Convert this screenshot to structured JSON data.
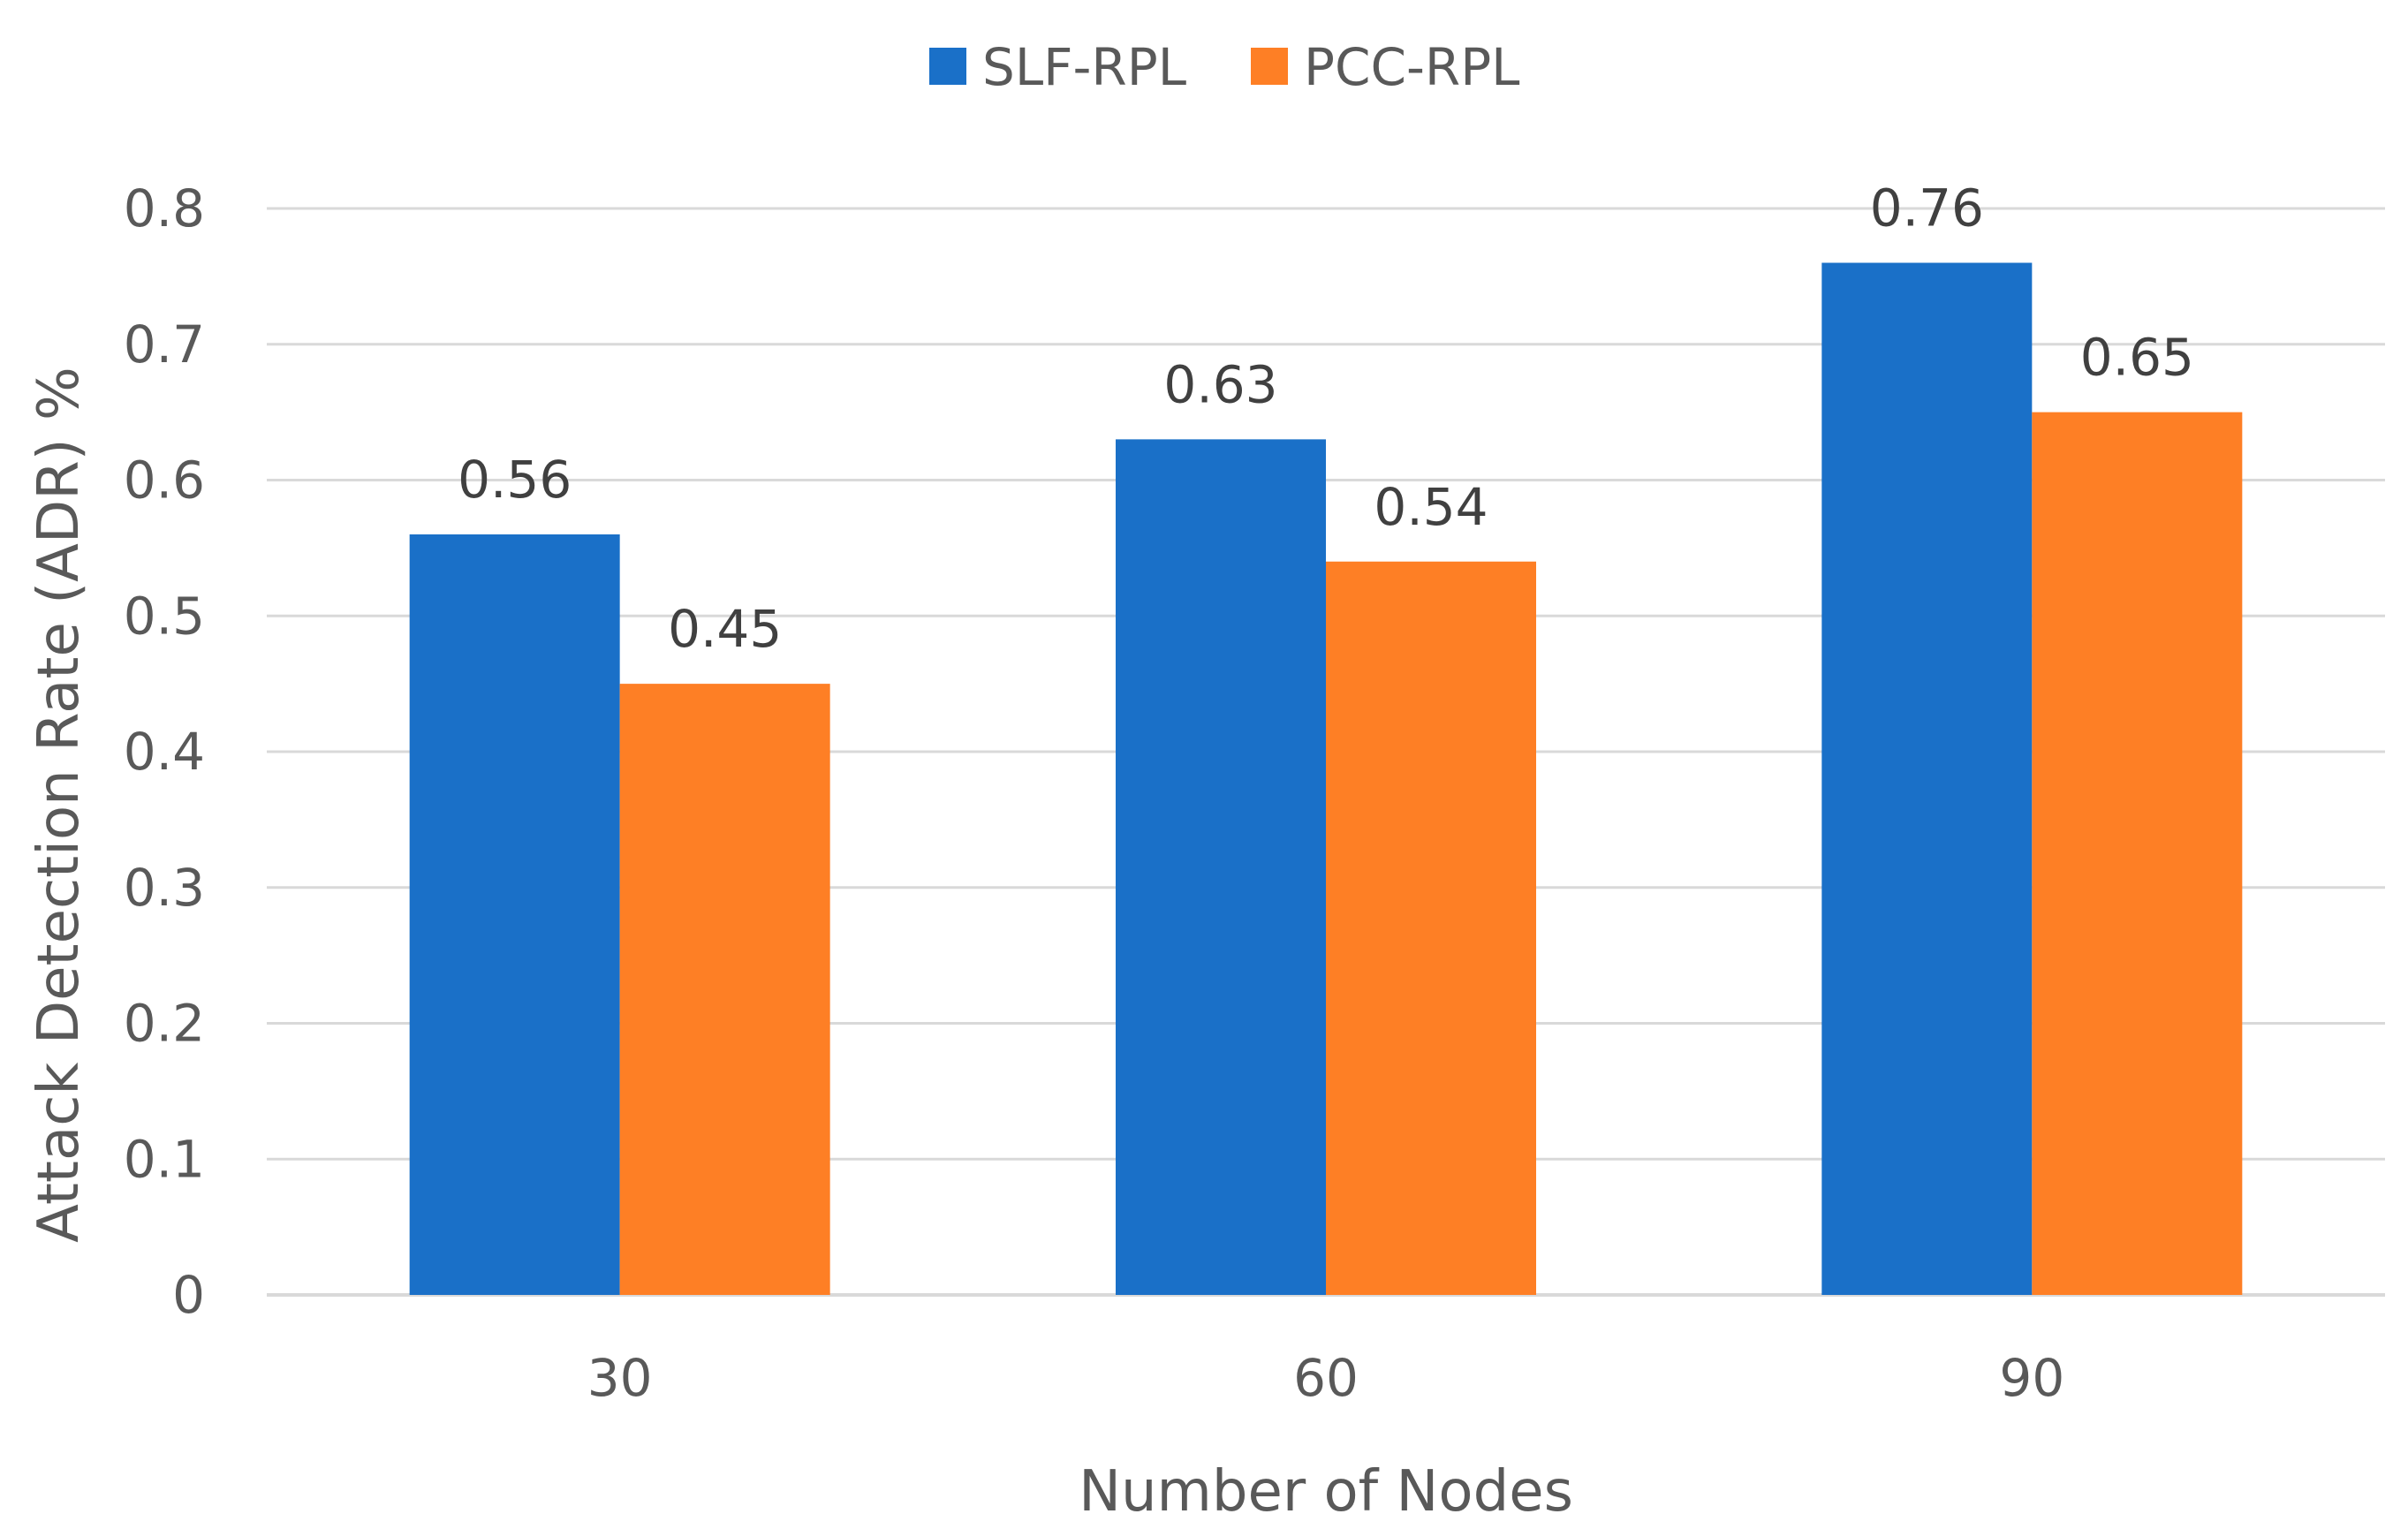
{
  "chart_data": {
    "type": "bar",
    "title": "",
    "xlabel": "Number of Nodes",
    "ylabel": "Attack Detection Rate (ADR) %",
    "categories": [
      "30",
      "60",
      "90"
    ],
    "series": [
      {
        "name": "SLF-RPL",
        "color": "#1a70c8",
        "values": [
          0.56,
          0.63,
          0.76
        ]
      },
      {
        "name": "PCC-RPL",
        "color": "#fe7f25",
        "values": [
          0.45,
          0.54,
          0.65
        ]
      }
    ],
    "ylim": [
      0,
      0.8
    ],
    "yticks": [
      0,
      0.1,
      0.2,
      0.3,
      0.4,
      0.5,
      0.6,
      0.7,
      0.8
    ],
    "ytick_labels": [
      "0",
      "0.1",
      "0.2",
      "0.3",
      "0.4",
      "0.5",
      "0.6",
      "0.7",
      "0.8"
    ],
    "grid": true,
    "legend_position": "top-center"
  }
}
